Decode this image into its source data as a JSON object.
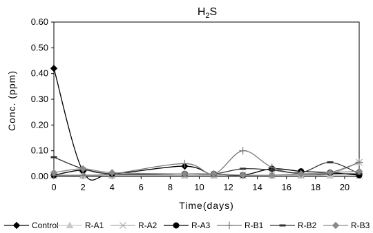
{
  "chart_data": {
    "type": "line",
    "title": {
      "main": "H",
      "subscript": "2",
      "rest": "S"
    },
    "xlabel": "Time(days)",
    "ylabel": "Conc. (ppm)",
    "xlim": [
      0,
      21
    ],
    "ylim": [
      0,
      0.6
    ],
    "xticks": [
      0,
      2,
      4,
      6,
      8,
      10,
      12,
      14,
      16,
      18,
      20
    ],
    "yticks": [
      0.0,
      0.1,
      0.2,
      0.3,
      0.4,
      0.5,
      0.6
    ],
    "ytick_labels": [
      "0.00",
      "0.10",
      "0.20",
      "0.30",
      "0.40",
      "0.50",
      "0.60"
    ],
    "grid": false,
    "legend_position": "bottom",
    "series": [
      {
        "name": "Control",
        "marker": "diamond",
        "color": "#000000",
        "points": [
          [
            0,
            0.42
          ],
          [
            2,
            0.02
          ],
          [
            4,
            0.01
          ],
          [
            9,
            0.04
          ],
          [
            11,
            0.005
          ],
          [
            13,
            0.005
          ],
          [
            15,
            0.005
          ],
          [
            17,
            0.005
          ],
          [
            19,
            0.01
          ],
          [
            21,
            0.01
          ]
        ]
      },
      {
        "name": "R-A1",
        "marker": "triangle",
        "color": "#c8c8c8",
        "points": [
          [
            0,
            0.003
          ],
          [
            2,
            0.003
          ],
          [
            4,
            0.003
          ],
          [
            9,
            0.003
          ],
          [
            11,
            0.003
          ],
          [
            13,
            0.003
          ],
          [
            15,
            0.003
          ],
          [
            17,
            0.003
          ],
          [
            19,
            0.003
          ],
          [
            21,
            0.003
          ]
        ]
      },
      {
        "name": "R-A2",
        "marker": "x",
        "color": "#aaaaaa",
        "points": [
          [
            0,
            0.005
          ],
          [
            2,
            0.005
          ],
          [
            4,
            0.005
          ],
          [
            9,
            0.005
          ],
          [
            11,
            0.005
          ],
          [
            13,
            0.005
          ],
          [
            15,
            0.005
          ],
          [
            17,
            0.005
          ],
          [
            19,
            0.01
          ],
          [
            21,
            0.055
          ]
        ]
      },
      {
        "name": "R-A3",
        "marker": "circle",
        "color": "#000000",
        "points": [
          [
            0,
            0.005
          ],
          [
            2,
            0.025
          ],
          [
            4,
            0.01
          ],
          [
            9,
            0.01
          ],
          [
            11,
            0.01
          ],
          [
            13,
            0.005
          ],
          [
            15,
            0.03
          ],
          [
            17,
            0.02
          ],
          [
            19,
            0.015
          ],
          [
            21,
            0.005
          ]
        ]
      },
      {
        "name": "R-B1",
        "marker": "plus",
        "color": "#777777",
        "points": [
          [
            0,
            0.005
          ],
          [
            2,
            0.005
          ],
          [
            4,
            0.01
          ],
          [
            9,
            0.05
          ],
          [
            11,
            0.01
          ],
          [
            13,
            0.1
          ],
          [
            15,
            0.035
          ],
          [
            17,
            0.01
          ],
          [
            19,
            0.015
          ],
          [
            21,
            0.055
          ]
        ]
      },
      {
        "name": "R-B2",
        "marker": "dash",
        "color": "#333333",
        "points": [
          [
            0,
            0.075
          ],
          [
            2,
            0.03
          ],
          [
            4,
            0.01
          ],
          [
            9,
            0.01
          ],
          [
            11,
            0.01
          ],
          [
            13,
            0.03
          ],
          [
            15,
            0.025
          ],
          [
            17,
            0.015
          ],
          [
            19,
            0.055
          ],
          [
            21,
            0.01
          ]
        ]
      },
      {
        "name": "R-B3",
        "marker": "diamond",
        "color": "#8a8a8a",
        "points": [
          [
            0,
            0.015
          ],
          [
            2,
            0.03
          ],
          [
            4,
            0.015
          ],
          [
            9,
            0.01
          ],
          [
            11,
            0.01
          ],
          [
            13,
            0.005
          ],
          [
            15,
            0.005
          ],
          [
            17,
            0.01
          ],
          [
            19,
            0.015
          ],
          [
            21,
            0.02
          ]
        ]
      }
    ]
  }
}
